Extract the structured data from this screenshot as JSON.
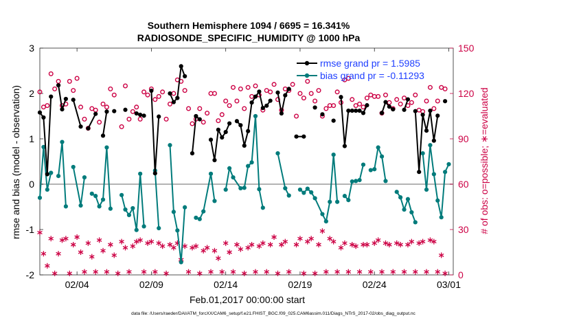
{
  "chart_data": {
    "type": "line",
    "title": "Southern Hemisphere 1094 / 6695 = 16.341%",
    "subtitle": "RADIOSONDE_SPECIFIC_HUMIDITY @ 1000 hPa",
    "xlabel": "Feb.01,2017 00:00:00 start",
    "ylabel_left": "rmse and bias (model - observation)",
    "ylabel_right": "# of obs: o=possible; ∗=evaluated",
    "footnote": "data file: /Users/raeder/DAI/ATM_forcXX/CAM6_setup/f.e21.FHIST_BGC.f09_025.CAM6assim.011/Diags_NTrS_2017-02/obs_diag_output.nc",
    "x_unit": "days since Feb.01,2017 00:00:00",
    "xlim": [
      0.5,
      28.3
    ],
    "x_ticks": [
      3,
      8,
      13,
      18,
      23,
      28
    ],
    "x_tick_labels": [
      "02/04",
      "02/09",
      "02/14",
      "02/19",
      "02/24",
      "03/01"
    ],
    "ylim_left": [
      -2,
      3
    ],
    "y_ticks_left": [
      -2,
      -1,
      0,
      1,
      2,
      3
    ],
    "y_tick_labels_left": [
      "-2",
      "-1",
      "0",
      "1",
      "2",
      "3"
    ],
    "ylim_right": [
      0,
      150
    ],
    "y_ticks_right": [
      0,
      30,
      60,
      90,
      120,
      150
    ],
    "y_tick_labels_right": [
      "0",
      "30",
      "60",
      "90",
      "120",
      "150"
    ],
    "legend": {
      "placement": "top-right",
      "rmse_label": "rmse grand pr = 1.5985",
      "bias_label": "bias grand pr = -0.11293"
    },
    "colors": {
      "rmse": "#000000",
      "bias": "#007b7b",
      "counts": "#cc0044",
      "zero_line": "#b3b3b3",
      "legend_text": "#1f3fff"
    },
    "rmse": [
      [
        0.5,
        1.58
      ],
      [
        0.75,
        1.47
      ],
      [
        1.0,
        0.22
      ],
      [
        1.25,
        1.93
      ],
      [
        1.5,
        null
      ],
      [
        1.75,
        2.18
      ],
      [
        2.0,
        1.65
      ],
      [
        2.25,
        1.88
      ],
      [
        2.5,
        null
      ],
      [
        2.75,
        1.86
      ],
      [
        3.25,
        1.27
      ],
      [
        3.5,
        null
      ],
      [
        3.75,
        1.23
      ],
      [
        4.25,
        1.55
      ],
      [
        4.5,
        null
      ],
      [
        4.75,
        1.07
      ],
      [
        5.0,
        1.6
      ],
      [
        5.25,
        null
      ],
      [
        5.5,
        1.61
      ],
      [
        5.75,
        null
      ],
      [
        6.25,
        1.64
      ],
      [
        6.5,
        null
      ],
      [
        7.0,
        1.56
      ],
      [
        7.25,
        1.53
      ],
      [
        7.5,
        1.51
      ],
      [
        7.75,
        null
      ],
      [
        8.0,
        2.06
      ],
      [
        8.25,
        0.24
      ],
      [
        8.5,
        1.49
      ],
      [
        8.75,
        null
      ],
      [
        9.25,
        2.0
      ],
      [
        9.5,
        1.81
      ],
      [
        9.75,
        1.9
      ],
      [
        10.0,
        2.6
      ],
      [
        10.25,
        2.38
      ],
      [
        10.5,
        null
      ],
      [
        10.75,
        0.68
      ],
      [
        11.0,
        1.5
      ],
      [
        11.25,
        1.43
      ],
      [
        11.5,
        null
      ],
      [
        12.0,
        0.98
      ],
      [
        12.25,
        0.53
      ],
      [
        12.5,
        1.2
      ],
      [
        12.75,
        1.03
      ],
      [
        13.0,
        1.15
      ],
      [
        13.25,
        1.34
      ],
      [
        13.5,
        null
      ],
      [
        13.75,
        1.39
      ],
      [
        14.0,
        1.3
      ],
      [
        14.25,
        0.85
      ],
      [
        14.5,
        1.17
      ],
      [
        14.75,
        1.8
      ],
      [
        15.0,
        1.93
      ],
      [
        15.25,
        2.04
      ],
      [
        15.5,
        1.68
      ],
      [
        15.75,
        1.73
      ],
      [
        16.0,
        1.84
      ],
      [
        16.25,
        null
      ],
      [
        16.5,
        2.02
      ],
      [
        16.75,
        1.56
      ],
      [
        17.0,
        1.96
      ],
      [
        17.25,
        2.1
      ],
      [
        17.5,
        null
      ],
      [
        17.75,
        1.05
      ],
      [
        18.25,
        1.05
      ],
      [
        18.5,
        null
      ],
      [
        19.0,
        1.69
      ],
      [
        19.25,
        null
      ],
      [
        19.5,
        1.54
      ],
      [
        19.75,
        null
      ],
      [
        20.25,
        1.4
      ],
      [
        20.5,
        null
      ],
      [
        20.75,
        1.92
      ],
      [
        21.0,
        0.84
      ],
      [
        21.25,
        1.62
      ],
      [
        21.5,
        1.62
      ],
      [
        21.75,
        1.62
      ],
      [
        22.0,
        1.62
      ],
      [
        22.25,
        1.57
      ],
      [
        22.5,
        1.74
      ],
      [
        22.75,
        null
      ],
      [
        23.5,
        1.57
      ],
      [
        23.75,
        1.81
      ],
      [
        24.0,
        1.71
      ],
      [
        24.25,
        1.65
      ],
      [
        24.5,
        null
      ],
      [
        25.0,
        1.64
      ],
      [
        25.25,
        1.87
      ],
      [
        25.5,
        null
      ],
      [
        25.75,
        1.61
      ],
      [
        26.0,
        0.27
      ],
      [
        26.25,
        1.53
      ],
      [
        26.5,
        1.18
      ],
      [
        26.75,
        1.62
      ],
      [
        27.0,
        0.96
      ],
      [
        27.25,
        1.51
      ],
      [
        27.5,
        null
      ],
      [
        27.75,
        1.83
      ]
    ],
    "bias": [
      [
        0.5,
        -0.3
      ],
      [
        0.75,
        0.82
      ],
      [
        1.0,
        -0.12
      ],
      [
        1.25,
        0.25
      ],
      [
        1.5,
        null
      ],
      [
        1.75,
        0.18
      ],
      [
        2.0,
        0.93
      ],
      [
        2.25,
        -0.49
      ],
      [
        2.5,
        null
      ],
      [
        2.75,
        0.38
      ],
      [
        3.25,
        -0.47
      ],
      [
        3.5,
        0.15
      ],
      [
        3.75,
        null
      ],
      [
        4.0,
        -0.21
      ],
      [
        4.25,
        -0.26
      ],
      [
        4.5,
        -0.49
      ],
      [
        4.75,
        -0.34
      ],
      [
        5.0,
        0.81
      ],
      [
        5.25,
        -0.54
      ],
      [
        5.5,
        null
      ],
      [
        6.0,
        -0.24
      ],
      [
        6.25,
        -0.56
      ],
      [
        6.5,
        -0.68
      ],
      [
        6.75,
        -0.53
      ],
      [
        7.0,
        -1.01
      ],
      [
        7.25,
        0.23
      ],
      [
        7.5,
        -0.93
      ],
      [
        7.75,
        null
      ],
      [
        8.25,
        0.3
      ],
      [
        8.5,
        -0.97
      ],
      [
        8.75,
        null
      ],
      [
        9.25,
        0.86
      ],
      [
        9.5,
        -0.61
      ],
      [
        9.75,
        -1.02
      ],
      [
        10.0,
        -1.72
      ],
      [
        10.25,
        -0.51
      ],
      [
        10.5,
        null
      ],
      [
        11.0,
        -0.74
      ],
      [
        11.25,
        -0.77
      ],
      [
        11.5,
        -0.6
      ],
      [
        12.0,
        0.23
      ],
      [
        12.25,
        -0.37
      ],
      [
        12.5,
        null
      ],
      [
        13.0,
        -0.12
      ],
      [
        13.25,
        0.35
      ],
      [
        13.5,
        0.15
      ],
      [
        14.0,
        -0.09
      ],
      [
        14.25,
        -0.08
      ],
      [
        14.5,
        0.4
      ],
      [
        14.75,
        0.48
      ],
      [
        15.0,
        1.5
      ],
      [
        15.25,
        -0.11
      ],
      [
        15.5,
        -0.52
      ],
      [
        15.75,
        null
      ],
      [
        16.5,
        0.68
      ],
      [
        17.0,
        -0.09
      ],
      [
        17.25,
        -0.25
      ],
      [
        17.5,
        null
      ],
      [
        18.0,
        -0.12
      ],
      [
        18.25,
        -0.19
      ],
      [
        18.5,
        -0.1
      ],
      [
        18.75,
        -0.18
      ],
      [
        19.0,
        -0.31
      ],
      [
        19.5,
        -0.66
      ],
      [
        19.75,
        -0.82
      ],
      [
        20.0,
        -0.39
      ],
      [
        20.25,
        0.65
      ],
      [
        20.5,
        -0.39
      ],
      [
        20.75,
        null
      ],
      [
        21.0,
        -0.26
      ],
      [
        21.25,
        -0.35
      ],
      [
        21.5,
        0.06
      ],
      [
        21.75,
        0.07
      ],
      [
        22.0,
        0.09
      ],
      [
        22.25,
        0.43
      ],
      [
        22.5,
        null
      ],
      [
        22.75,
        0.31
      ],
      [
        23.0,
        0.33
      ],
      [
        23.25,
        0.81
      ],
      [
        23.5,
        0.61
      ],
      [
        23.75,
        0.07
      ],
      [
        24.0,
        null
      ],
      [
        24.5,
        -0.17
      ],
      [
        24.75,
        -0.29
      ],
      [
        25.0,
        -0.56
      ],
      [
        25.25,
        -0.33
      ],
      [
        25.5,
        -0.62
      ],
      [
        25.75,
        -0.84
      ],
      [
        26.0,
        null
      ],
      [
        26.25,
        0.68
      ],
      [
        26.5,
        -0.12
      ],
      [
        26.75,
        0.86
      ],
      [
        27.0,
        0.22
      ],
      [
        27.25,
        -0.36
      ],
      [
        27.5,
        -0.73
      ],
      [
        27.75,
        0.27
      ],
      [
        28.0,
        0.44
      ]
    ],
    "possible": [
      [
        0.5,
        121
      ],
      [
        0.75,
        111
      ],
      [
        1.0,
        112
      ],
      [
        1.25,
        133
      ],
      [
        1.5,
        123
      ],
      [
        1.75,
        128
      ],
      [
        2.0,
        112
      ],
      [
        2.25,
        113
      ],
      [
        2.5,
        128
      ],
      [
        2.75,
        122
      ],
      [
        3.0,
        130
      ],
      [
        3.25,
        111
      ],
      [
        3.5,
        103
      ],
      [
        3.75,
        97
      ],
      [
        4.0,
        110
      ],
      [
        4.25,
        109
      ],
      [
        4.5,
        101
      ],
      [
        4.75,
        113
      ],
      [
        5.0,
        111
      ],
      [
        5.25,
        123
      ],
      [
        5.5,
        119
      ],
      [
        6.0,
        98
      ],
      [
        6.25,
        125
      ],
      [
        6.5,
        103
      ],
      [
        6.75,
        108
      ],
      [
        7.0,
        111
      ],
      [
        7.25,
        103
      ],
      [
        7.5,
        121
      ],
      [
        7.75,
        119
      ],
      [
        8.0,
        123
      ],
      [
        8.25,
        116
      ],
      [
        8.5,
        118
      ],
      [
        8.75,
        121
      ],
      [
        9.0,
        103
      ],
      [
        9.25,
        113
      ],
      [
        9.5,
        120
      ],
      [
        9.75,
        129
      ],
      [
        10.0,
        128
      ],
      [
        10.25,
        122
      ],
      [
        10.5,
        110
      ],
      [
        10.75,
        100
      ],
      [
        11.0,
        103
      ],
      [
        11.25,
        110
      ],
      [
        11.5,
        101
      ],
      [
        11.75,
        107
      ],
      [
        12.0,
        120
      ],
      [
        12.25,
        120
      ],
      [
        12.5,
        102
      ],
      [
        12.75,
        106
      ],
      [
        13.0,
        115
      ],
      [
        13.25,
        112
      ],
      [
        13.5,
        124
      ],
      [
        13.75,
        115
      ],
      [
        14.0,
        123
      ],
      [
        14.25,
        110
      ],
      [
        14.5,
        124
      ],
      [
        14.75,
        118
      ],
      [
        15.0,
        125
      ],
      [
        15.25,
        119
      ],
      [
        15.5,
        109
      ],
      [
        15.75,
        122
      ],
      [
        16.0,
        121
      ],
      [
        16.25,
        126
      ],
      [
        16.5,
        116
      ],
      [
        16.75,
        109
      ],
      [
        17.0,
        123
      ],
      [
        17.25,
        122
      ],
      [
        17.5,
        126
      ],
      [
        17.75,
        105
      ],
      [
        18.0,
        120
      ],
      [
        18.25,
        117
      ],
      [
        18.5,
        128
      ],
      [
        18.75,
        120
      ],
      [
        19.0,
        115
      ],
      [
        19.25,
        122
      ],
      [
        19.5,
        105
      ],
      [
        19.75,
        110
      ],
      [
        20.0,
        112
      ],
      [
        20.25,
        112
      ],
      [
        20.5,
        121
      ],
      [
        20.75,
        114
      ],
      [
        21.0,
        129
      ],
      [
        21.25,
        130
      ],
      [
        21.5,
        116
      ],
      [
        21.75,
        112
      ],
      [
        22.0,
        113
      ],
      [
        22.25,
        111
      ],
      [
        22.5,
        117
      ],
      [
        22.75,
        119
      ],
      [
        23.0,
        118
      ],
      [
        23.25,
        118
      ],
      [
        23.5,
        107
      ],
      [
        23.75,
        119
      ],
      [
        24.0,
        114
      ],
      [
        24.25,
        110
      ],
      [
        24.5,
        116
      ],
      [
        24.75,
        113
      ],
      [
        25.0,
        117
      ],
      [
        25.25,
        112
      ],
      [
        25.5,
        114
      ],
      [
        25.75,
        119
      ],
      [
        26.0,
        109
      ],
      [
        26.25,
        108
      ],
      [
        26.5,
        115
      ],
      [
        26.75,
        124
      ],
      [
        27.0,
        110
      ],
      [
        27.25,
        115
      ],
      [
        27.5,
        124
      ],
      [
        27.75,
        123
      ]
    ],
    "evaluated": [
      [
        0.5,
        28
      ],
      [
        0.75,
        14
      ],
      [
        1.0,
        6
      ],
      [
        1.25,
        24
      ],
      [
        1.5,
        1
      ],
      [
        1.75,
        14
      ],
      [
        2.0,
        23
      ],
      [
        2.25,
        24
      ],
      [
        2.5,
        1
      ],
      [
        2.75,
        20
      ],
      [
        3.0,
        25
      ],
      [
        3.25,
        15
      ],
      [
        3.5,
        2
      ],
      [
        3.75,
        21
      ],
      [
        4.0,
        12
      ],
      [
        4.25,
        2
      ],
      [
        4.5,
        23
      ],
      [
        4.75,
        16
      ],
      [
        5.0,
        2
      ],
      [
        5.25,
        20
      ],
      [
        5.5,
        13
      ],
      [
        5.75,
        1
      ],
      [
        6.0,
        22
      ],
      [
        6.25,
        18
      ],
      [
        6.5,
        2
      ],
      [
        6.75,
        19
      ],
      [
        7.0,
        22
      ],
      [
        7.25,
        23
      ],
      [
        7.5,
        2
      ],
      [
        7.75,
        21
      ],
      [
        8.0,
        22
      ],
      [
        8.25,
        2
      ],
      [
        8.5,
        21
      ],
      [
        8.75,
        19
      ],
      [
        9.0,
        1
      ],
      [
        9.25,
        20
      ],
      [
        9.5,
        18
      ],
      [
        9.75,
        21
      ],
      [
        10.0,
        10
      ],
      [
        10.25,
        19
      ],
      [
        10.5,
        2
      ],
      [
        10.75,
        18
      ],
      [
        11.0,
        19
      ],
      [
        11.25,
        1
      ],
      [
        11.5,
        16
      ],
      [
        11.75,
        18
      ],
      [
        12.0,
        2
      ],
      [
        12.25,
        16
      ],
      [
        12.5,
        11
      ],
      [
        12.75,
        2
      ],
      [
        13.0,
        21
      ],
      [
        13.25,
        15
      ],
      [
        13.5,
        2
      ],
      [
        13.75,
        20
      ],
      [
        14.0,
        17
      ],
      [
        14.25,
        1
      ],
      [
        14.5,
        18
      ],
      [
        14.75,
        20
      ],
      [
        15.0,
        2
      ],
      [
        15.25,
        19
      ],
      [
        15.5,
        21
      ],
      [
        15.75,
        2
      ],
      [
        16.0,
        20
      ],
      [
        16.25,
        25
      ],
      [
        16.5,
        1
      ],
      [
        16.75,
        20
      ],
      [
        17.0,
        22
      ],
      [
        17.25,
        2
      ],
      [
        17.75,
        20
      ],
      [
        18.0,
        24
      ],
      [
        18.25,
        1
      ],
      [
        18.5,
        22
      ],
      [
        18.75,
        24
      ],
      [
        19.0,
        1
      ],
      [
        19.25,
        20
      ],
      [
        19.5,
        29
      ],
      [
        19.75,
        2
      ],
      [
        20.0,
        24
      ],
      [
        20.25,
        22
      ],
      [
        20.5,
        2
      ],
      [
        20.75,
        18
      ],
      [
        21.0,
        21
      ],
      [
        21.25,
        2
      ],
      [
        21.5,
        20
      ],
      [
        21.75,
        19
      ],
      [
        22.0,
        2
      ],
      [
        22.25,
        20
      ],
      [
        22.5,
        20
      ],
      [
        22.75,
        2
      ],
      [
        23.0,
        21
      ],
      [
        23.25,
        23
      ],
      [
        23.5,
        2
      ],
      [
        23.75,
        21
      ],
      [
        24.0,
        20
      ],
      [
        24.25,
        2
      ],
      [
        24.5,
        21
      ],
      [
        24.75,
        20
      ],
      [
        25.0,
        2
      ],
      [
        25.25,
        20
      ],
      [
        25.5,
        22
      ],
      [
        25.75,
        2
      ],
      [
        26.0,
        21
      ],
      [
        26.25,
        22
      ],
      [
        26.5,
        2
      ],
      [
        26.75,
        23
      ],
      [
        27.0,
        22
      ],
      [
        27.25,
        2
      ],
      [
        27.5,
        13
      ],
      [
        27.75,
        1
      ]
    ]
  }
}
